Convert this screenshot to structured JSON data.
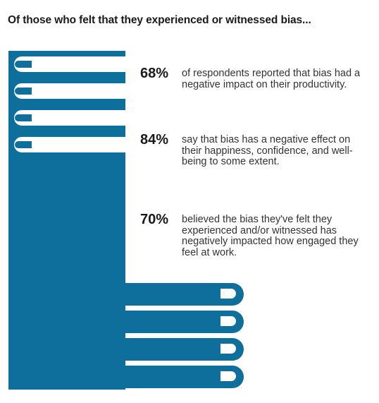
{
  "title": "Of those who felt that they experienced or witnessed bias...",
  "colors": {
    "accent": "#0E6E9C",
    "text": "#333333",
    "title": "#1a1a1a",
    "background": "#ffffff"
  },
  "illustration": {
    "icon": "two-hands-illustration"
  },
  "stats": [
    {
      "percent": "68%",
      "text": "of respondents reported that bias had a negative impact on their productivity."
    },
    {
      "percent": "84%",
      "text": "say that bias has a negative effect on their happiness, confidence, and well-being to some extent."
    },
    {
      "percent": "70%",
      "text": "believed the bias they've felt they experienced and/or witnessed has negatively impacted how engaged they feel at work."
    }
  ]
}
